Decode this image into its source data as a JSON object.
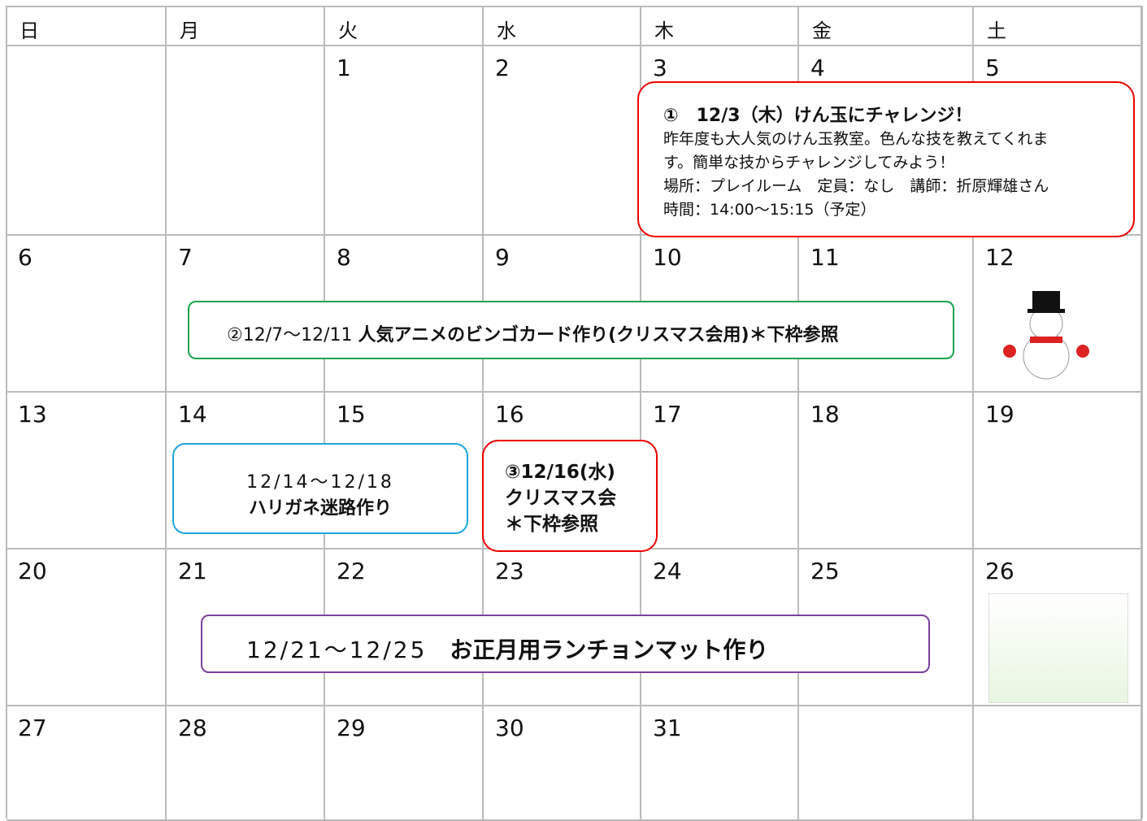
{
  "header": [
    "日",
    "月",
    "火",
    "水",
    "木",
    "金",
    "土"
  ],
  "weeks": [
    [
      null,
      null,
      1,
      2,
      3,
      4,
      5
    ],
    [
      6,
      7,
      8,
      9,
      10,
      11,
      12
    ],
    [
      13,
      14,
      15,
      16,
      17,
      18,
      19
    ],
    [
      20,
      21,
      22,
      23,
      24,
      25,
      26
    ],
    [
      27,
      28,
      29,
      30,
      31,
      null,
      null
    ]
  ],
  "events": [
    {
      "title": "①　12/3（木）けん玉にチャレンジ！",
      "lines": [
        "昨年度も大人気のけん玉教室。色んな技を教えてくれま",
        "す。簡単な技からチャレンジしてみよう！",
        "場所：プレイルーム　定員：なし　講師：折原輝雄さん",
        "時間：14:00〜15:15（予定）"
      ]
    },
    {
      "date": "②12/7〜12/11",
      "text": "人気アニメのビンゴカード作り(クリスマス会用)＊下枠参照"
    },
    {
      "date": "12/14〜12/18",
      "text": "ハリガネ迷路作り"
    },
    {
      "lines": [
        "③12/16(水)",
        "クリスマス会",
        "＊下枠参照"
      ]
    },
    {
      "date": "12/21〜12/25",
      "text": "お正月用ランチョンマット作り"
    }
  ]
}
